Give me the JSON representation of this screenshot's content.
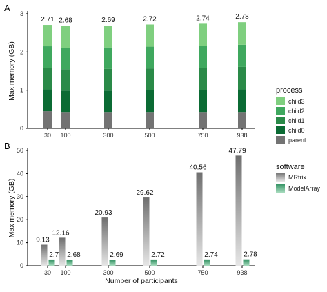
{
  "chart_data": [
    {
      "panel": "A",
      "type": "bar",
      "stacked": true,
      "categories": [
        "30",
        "100",
        "300",
        "500",
        "750",
        "938"
      ],
      "ylabel": "Max memory (GB)",
      "xlabel": "",
      "ylim": [
        0,
        3
      ],
      "yticks": [
        "0",
        "1",
        "2",
        "3"
      ],
      "legend": {
        "title": "process",
        "placement": "right"
      },
      "series": [
        {
          "name": "parent",
          "color": "#737373",
          "values": [
            0.45,
            0.43,
            0.43,
            0.43,
            0.43,
            0.43
          ]
        },
        {
          "name": "child0",
          "color": "#0b6b34",
          "values": [
            0.57,
            0.56,
            0.56,
            0.57,
            0.58,
            0.59
          ]
        },
        {
          "name": "child1",
          "color": "#2a8a48",
          "values": [
            0.56,
            0.56,
            0.57,
            0.57,
            0.57,
            0.59
          ]
        },
        {
          "name": "child2",
          "color": "#3fa85e",
          "values": [
            0.57,
            0.56,
            0.56,
            0.57,
            0.58,
            0.58
          ]
        },
        {
          "name": "child3",
          "color": "#7fcf7f",
          "values": [
            0.56,
            0.57,
            0.57,
            0.58,
            0.58,
            0.59
          ]
        }
      ],
      "totals": [
        "2.71",
        "2.68",
        "2.69",
        "2.72",
        "2.74",
        "2.78"
      ],
      "total_values": [
        2.71,
        2.68,
        2.69,
        2.72,
        2.74,
        2.78
      ]
    },
    {
      "panel": "B",
      "type": "bar",
      "categories": [
        "30",
        "100",
        "300",
        "500",
        "750",
        "938"
      ],
      "xlabel": "Number of participants",
      "ylabel": "Max memory (GB)",
      "ylim": [
        0,
        50
      ],
      "yticks": [
        "0",
        "10",
        "20",
        "30",
        "40",
        "50"
      ],
      "legend": {
        "title": "software",
        "placement": "right"
      },
      "series": [
        {
          "name": "MRtrix",
          "color": "#808080",
          "values": [
            9.13,
            12.16,
            20.93,
            29.62,
            40.56,
            47.79
          ],
          "labels": [
            "9.13",
            "12.16",
            "20.93",
            "29.62",
            "40.56",
            "47.79"
          ]
        },
        {
          "name": "ModelArray",
          "color": "#3a9a6a",
          "values": [
            2.71,
            2.68,
            2.69,
            2.72,
            2.74,
            2.78
          ],
          "labels": [
            "2.71",
            "2.68",
            "2.69",
            "2.72",
            "2.74",
            "2.78"
          ]
        }
      ]
    }
  ],
  "panel_labels": {
    "a": "A",
    "b": "B"
  }
}
